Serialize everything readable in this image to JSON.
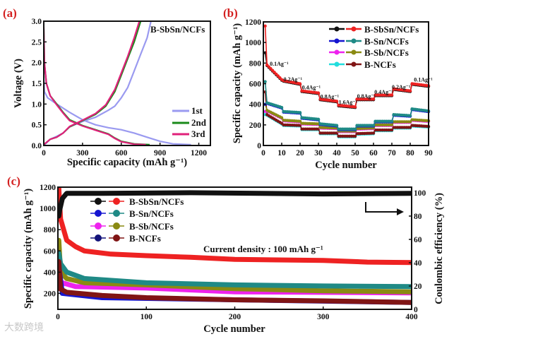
{
  "watermark": "大数跨境",
  "chart_data": [
    {
      "panel_label": "(a)",
      "type": "line",
      "title": "B-SbSn/NCFs",
      "xlabel": "Specific capacity (mAh g⁻¹)",
      "ylabel": "Voltage (V)",
      "xlim": [
        0,
        1290
      ],
      "ylim": [
        0,
        3
      ],
      "xticks": [
        0,
        300,
        600,
        900,
        1200
      ],
      "yticks": [
        0.0,
        0.5,
        1.0,
        1.5,
        2.0,
        2.5,
        3.0
      ],
      "ytick_labels": [
        "0.0",
        "0.5",
        "1.0",
        "1.5",
        "2.0",
        "2.5",
        "3.0"
      ],
      "legend_position": "bottom-right",
      "series": [
        {
          "name": "1st",
          "color": "#9a9af0",
          "discharge": [
            [
              0,
              1.65
            ],
            [
              5,
              1.3
            ],
            [
              30,
              1.15
            ],
            [
              100,
              1.0
            ],
            [
              200,
              0.8
            ],
            [
              300,
              0.62
            ],
            [
              400,
              0.5
            ],
            [
              500,
              0.43
            ],
            [
              600,
              0.38
            ],
            [
              700,
              0.3
            ],
            [
              800,
              0.2
            ],
            [
              900,
              0.1
            ],
            [
              1000,
              0.04
            ],
            [
              1140,
              0.02
            ]
          ],
          "charge": [
            [
              0,
              0
            ],
            [
              50,
              0.15
            ],
            [
              100,
              0.22
            ],
            [
              150,
              0.3
            ],
            [
              200,
              0.45
            ],
            [
              300,
              0.58
            ],
            [
              400,
              0.68
            ],
            [
              500,
              0.85
            ],
            [
              550,
              0.95
            ],
            [
              600,
              1.15
            ],
            [
              650,
              1.4
            ],
            [
              700,
              1.8
            ],
            [
              750,
              2.2
            ],
            [
              800,
              2.6
            ],
            [
              830,
              3.0
            ]
          ]
        },
        {
          "name": "2nd",
          "color": "#1a8a1a",
          "discharge": [
            [
              0,
              2.8
            ],
            [
              5,
              2.0
            ],
            [
              20,
              1.5
            ],
            [
              50,
              1.2
            ],
            [
              100,
              1.0
            ],
            [
              150,
              0.8
            ],
            [
              200,
              0.62
            ],
            [
              300,
              0.48
            ],
            [
              400,
              0.38
            ],
            [
              500,
              0.28
            ],
            [
              550,
              0.18
            ],
            [
              600,
              0.1
            ],
            [
              700,
              0.04
            ],
            [
              820,
              0.02
            ]
          ],
          "charge": [
            [
              0,
              0.02
            ],
            [
              50,
              0.15
            ],
            [
              100,
              0.2
            ],
            [
              150,
              0.3
            ],
            [
              200,
              0.45
            ],
            [
              300,
              0.6
            ],
            [
              400,
              0.75
            ],
            [
              480,
              0.95
            ],
            [
              550,
              1.3
            ],
            [
              600,
              1.7
            ],
            [
              650,
              2.1
            ],
            [
              700,
              2.5
            ],
            [
              750,
              3.0
            ]
          ]
        },
        {
          "name": "3rd",
          "color": "#e0207a",
          "discharge": [
            [
              0,
              2.85
            ],
            [
              5,
              2.0
            ],
            [
              20,
              1.5
            ],
            [
              50,
              1.2
            ],
            [
              100,
              0.98
            ],
            [
              150,
              0.78
            ],
            [
              200,
              0.6
            ],
            [
              300,
              0.47
            ],
            [
              400,
              0.37
            ],
            [
              500,
              0.27
            ],
            [
              550,
              0.17
            ],
            [
              600,
              0.09
            ],
            [
              700,
              0.03
            ],
            [
              790,
              0.02
            ]
          ],
          "charge": [
            [
              0,
              0.02
            ],
            [
              50,
              0.15
            ],
            [
              100,
              0.2
            ],
            [
              150,
              0.3
            ],
            [
              200,
              0.46
            ],
            [
              300,
              0.61
            ],
            [
              400,
              0.77
            ],
            [
              480,
              0.98
            ],
            [
              550,
              1.35
            ],
            [
              600,
              1.75
            ],
            [
              650,
              2.15
            ],
            [
              700,
              2.6
            ],
            [
              740,
              3.0
            ]
          ]
        }
      ]
    },
    {
      "panel_label": "(b)",
      "type": "line",
      "xlabel": "Cycle number",
      "ylabel": "Specific capacity (mAh g⁻¹)",
      "xlim": [
        0,
        90
      ],
      "ylim": [
        0,
        1200
      ],
      "xticks": [
        0,
        10,
        20,
        30,
        40,
        50,
        60,
        70,
        80,
        90
      ],
      "yticks": [
        0,
        200,
        400,
        600,
        800,
        1000,
        1200
      ],
      "legend_position": "top-right",
      "series": [
        {
          "name": "B-SbSn/NCFs",
          "colors": [
            "#111111",
            "#ee2222"
          ],
          "first": [
            900,
            1160
          ],
          "segments": [
            [
              800,
              640
            ],
            [
              630,
              600
            ],
            [
              530,
              510
            ],
            [
              450,
              430
            ],
            [
              390,
              375
            ],
            [
              450,
              450
            ],
            [
              490,
              490
            ],
            [
              550,
              530
            ],
            [
              600,
              580
            ]
          ]
        },
        {
          "name": "B-Sn/NCFs",
          "colors": [
            "#1515d0",
            "#1f8a86"
          ],
          "first": [
            400,
            620
          ],
          "segments": [
            [
              420,
              370
            ],
            [
              330,
              320
            ],
            [
              270,
              255
            ],
            [
              210,
              195
            ],
            [
              160,
              160
            ],
            [
              195,
              195
            ],
            [
              235,
              235
            ],
            [
              300,
              290
            ],
            [
              355,
              335
            ]
          ]
        },
        {
          "name": "B-Sb/NCFs",
          "colors": [
            "#ee22ee",
            "#8a8a12"
          ],
          "first": [
            330,
            400
          ],
          "segments": [
            [
              350,
              270
            ],
            [
              245,
              235
            ],
            [
              215,
              210
            ],
            [
              175,
              170
            ],
            [
              140,
              140
            ],
            [
              165,
              170
            ],
            [
              200,
              200
            ],
            [
              230,
              230
            ],
            [
              250,
              240
            ]
          ]
        },
        {
          "name": "B-NCFs",
          "colors": [
            "#22dddd",
            "#801515"
          ],
          "first": [
            300,
            520
          ],
          "segments": [
            [
              310,
              215
            ],
            [
              200,
              195
            ],
            [
              160,
              160
            ],
            [
              120,
              120
            ],
            [
              90,
              90
            ],
            [
              115,
              120
            ],
            [
              150,
              150
            ],
            [
              175,
              175
            ],
            [
              195,
              185
            ]
          ]
        }
      ],
      "annotations": [
        {
          "text": "0.1Ag⁻¹",
          "x": 3.5,
          "y": 775
        },
        {
          "text": "0.2Ag⁻¹",
          "x": 11,
          "y": 625
        },
        {
          "text": "0.4Ag⁻¹",
          "x": 21,
          "y": 545
        },
        {
          "text": "0.8Ag⁻¹",
          "x": 31,
          "y": 455
        },
        {
          "text": "1.6Ag⁻¹",
          "x": 41,
          "y": 400
        },
        {
          "text": "0.8Ag⁻¹",
          "x": 51,
          "y": 460
        },
        {
          "text": "0.4Ag⁻¹",
          "x": 60.5,
          "y": 500
        },
        {
          "text": "0.2Ag⁻¹",
          "x": 70,
          "y": 550
        },
        {
          "text": "0.1Ag⁻¹",
          "x": 82,
          "y": 620
        }
      ]
    },
    {
      "panel_label": "(c)",
      "type": "line",
      "xlabel": "Cycle number",
      "ylabel": "Specific capacity (mAh g⁻¹)",
      "ylabel_right": "Coulombic efficiency (%)",
      "annotation": "Current density : 100 mAh g⁻¹",
      "xlim": [
        0,
        400
      ],
      "ylim": [
        50,
        1200
      ],
      "ylim_right": [
        0,
        104.8
      ],
      "xticks": [
        0,
        100,
        200,
        300,
        400
      ],
      "yticks": [
        200,
        400,
        600,
        800,
        1000,
        1200
      ],
      "yticks_right": [
        0,
        20,
        40,
        60,
        80,
        100
      ],
      "legend_position": "top-left",
      "legend": [
        {
          "name": "B-SbSn/NCFs",
          "colors": [
            "#111111",
            "#ee2222"
          ]
        },
        {
          "name": "B-Sn/NCFs",
          "colors": [
            "#1515d0",
            "#1f8a86"
          ]
        },
        {
          "name": "B-Sb/NCFs",
          "colors": [
            "#ee22ee",
            "#8a8a12"
          ]
        },
        {
          "name": "B-NCFs",
          "colors": [
            "#14147a",
            "#801515"
          ]
        }
      ],
      "series": [
        {
          "name": "B-Sb/NCFs capacity (magenta)",
          "color": "#ee22ee",
          "axis": "left",
          "points": [
            [
              1,
              330
            ],
            [
              5,
              300
            ],
            [
              20,
              265
            ],
            [
              100,
              250
            ],
            [
              200,
              215
            ],
            [
              400,
              205
            ]
          ]
        },
        {
          "name": "B-Sb/NCFs capacity (olive)",
          "color": "#8a8a12",
          "axis": "left",
          "points": [
            [
              1,
              700
            ],
            [
              3,
              400
            ],
            [
              10,
              340
            ],
            [
              30,
              300
            ],
            [
              100,
              280
            ],
            [
              200,
              245
            ],
            [
              300,
              225
            ],
            [
              400,
              215
            ]
          ]
        },
        {
          "name": "B-Sn/NCFs capacity (blue)",
          "color": "#1515d0",
          "axis": "left",
          "points": [
            [
              1,
              460
            ],
            [
              5,
              200
            ],
            [
              50,
              160
            ],
            [
              200,
              140
            ],
            [
              400,
              115
            ]
          ]
        },
        {
          "name": "B-Sn/NCFs capacity (teal)",
          "color": "#1f8a86",
          "axis": "left",
          "points": [
            [
              1,
              580
            ],
            [
              3,
              480
            ],
            [
              10,
              400
            ],
            [
              30,
              340
            ],
            [
              100,
              300
            ],
            [
              200,
              280
            ],
            [
              300,
              270
            ],
            [
              400,
              265
            ]
          ]
        },
        {
          "name": "B-NCFs capacity (maroon)",
          "color": "#801515",
          "axis": "left",
          "points": [
            [
              1,
              500
            ],
            [
              3,
              240
            ],
            [
              10,
              210
            ],
            [
              50,
              180
            ],
            [
              100,
              160
            ],
            [
              200,
              140
            ],
            [
              300,
              130
            ],
            [
              400,
              115
            ]
          ]
        },
        {
          "name": "B-SbSn/NCFs capacity (red)",
          "color": "#ee2222",
          "axis": "left",
          "points": [
            [
              1,
              1190
            ],
            [
              3,
              900
            ],
            [
              10,
              700
            ],
            [
              20,
              640
            ],
            [
              30,
              600
            ],
            [
              60,
              570
            ],
            [
              100,
              555
            ],
            [
              150,
              540
            ],
            [
              200,
              520
            ],
            [
              300,
              510
            ],
            [
              350,
              495
            ],
            [
              400,
              490
            ]
          ]
        },
        {
          "name": "B-SbSn/NCFs Coulombic efficiency",
          "color": "#111111",
          "axis": "right",
          "points": [
            [
              1,
              80
            ],
            [
              2,
              85
            ],
            [
              5,
              95
            ],
            [
              10,
              99.5
            ],
            [
              50,
              99.5
            ],
            [
              150,
              100
            ],
            [
              300,
              99
            ],
            [
              400,
              99.5
            ]
          ]
        }
      ]
    }
  ]
}
